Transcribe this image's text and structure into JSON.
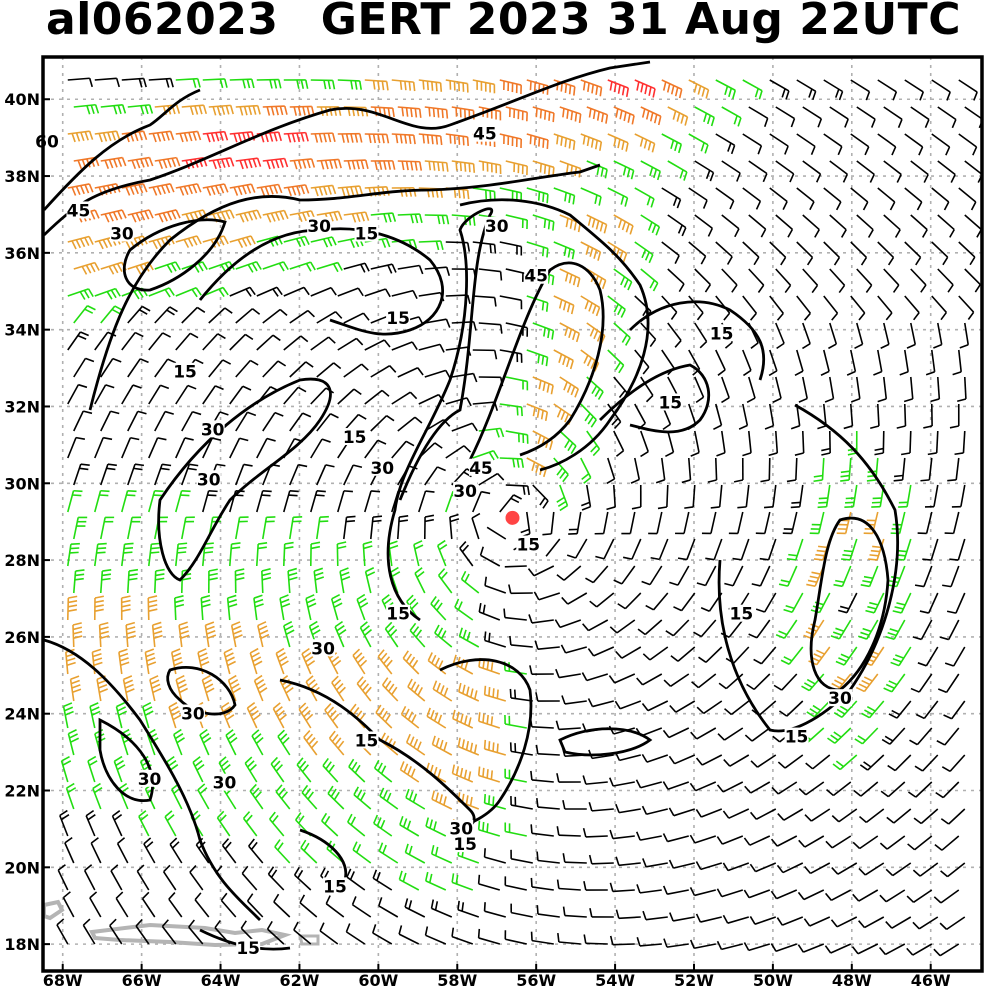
{
  "header": {
    "storm_id": "al062023",
    "title": "GERT 2023 31 Aug 22UTC"
  },
  "axes": {
    "lon_range": [
      -68.5,
      -44.7
    ],
    "lat_range": [
      17.3,
      41.1
    ],
    "lon_ticks": [
      {
        "value": -68,
        "label": "68W"
      },
      {
        "value": -66,
        "label": "66W"
      },
      {
        "value": -64,
        "label": "64W"
      },
      {
        "value": -62,
        "label": "62W"
      },
      {
        "value": -60,
        "label": "60W"
      },
      {
        "value": -58,
        "label": "58W"
      },
      {
        "value": -56,
        "label": "56W"
      },
      {
        "value": -54,
        "label": "54W"
      },
      {
        "value": -52,
        "label": "52W"
      },
      {
        "value": -50,
        "label": "50W"
      },
      {
        "value": -48,
        "label": "48W"
      },
      {
        "value": -46,
        "label": "46W"
      }
    ],
    "lat_ticks": [
      {
        "value": 40,
        "label": "40N"
      },
      {
        "value": 38,
        "label": "38N"
      },
      {
        "value": 36,
        "label": "36N"
      },
      {
        "value": 34,
        "label": "34N"
      },
      {
        "value": 32,
        "label": "32N"
      },
      {
        "value": 30,
        "label": "30N"
      },
      {
        "value": 28,
        "label": "28N"
      },
      {
        "value": 26,
        "label": "26N"
      },
      {
        "value": 24,
        "label": "24N"
      },
      {
        "value": 22,
        "label": "22N"
      },
      {
        "value": 20,
        "label": "20N"
      },
      {
        "value": 18,
        "label": "18N"
      }
    ],
    "grid": true,
    "grid_color": "#b0b0b0"
  },
  "storm_center": {
    "lon": -56.6,
    "lat": 29.1,
    "color": "#ff4444"
  },
  "wind_colors": {
    "calm": "#000000",
    "moderate": "#22dd11",
    "strong": "#e8a030",
    "very_strong": "#f07828",
    "extreme": "#ff3030"
  },
  "contour_labels": [
    {
      "text": "60",
      "lon": -68.4,
      "lat": 38.8
    },
    {
      "text": "45",
      "lon": -67.6,
      "lat": 37.0
    },
    {
      "text": "30",
      "lon": -66.5,
      "lat": 36.4
    },
    {
      "text": "45",
      "lon": -57.3,
      "lat": 39.0
    },
    {
      "text": "30",
      "lon": -61.5,
      "lat": 36.6
    },
    {
      "text": "15",
      "lon": -60.3,
      "lat": 36.4
    },
    {
      "text": "30",
      "lon": -57.0,
      "lat": 36.6
    },
    {
      "text": "45",
      "lon": -56.0,
      "lat": 35.3
    },
    {
      "text": "15",
      "lon": -59.5,
      "lat": 34.2
    },
    {
      "text": "15",
      "lon": -51.3,
      "lat": 33.8
    },
    {
      "text": "15",
      "lon": -64.9,
      "lat": 32.8
    },
    {
      "text": "15",
      "lon": -52.6,
      "lat": 32.0
    },
    {
      "text": "30",
      "lon": -64.2,
      "lat": 31.3
    },
    {
      "text": "15",
      "lon": -60.6,
      "lat": 31.1
    },
    {
      "text": "30",
      "lon": -59.9,
      "lat": 30.3
    },
    {
      "text": "30",
      "lon": -64.3,
      "lat": 30.0
    },
    {
      "text": "45",
      "lon": -57.4,
      "lat": 30.3
    },
    {
      "text": "30",
      "lon": -57.8,
      "lat": 29.7
    },
    {
      "text": "15",
      "lon": -56.2,
      "lat": 28.3
    },
    {
      "text": "15",
      "lon": -59.5,
      "lat": 26.5
    },
    {
      "text": "15",
      "lon": -50.8,
      "lat": 26.5
    },
    {
      "text": "30",
      "lon": -61.4,
      "lat": 25.6
    },
    {
      "text": "30",
      "lon": -64.7,
      "lat": 23.9
    },
    {
      "text": "30",
      "lon": -48.3,
      "lat": 24.3
    },
    {
      "text": "15",
      "lon": -60.3,
      "lat": 23.2
    },
    {
      "text": "15",
      "lon": -49.4,
      "lat": 23.3
    },
    {
      "text": "30",
      "lon": -65.8,
      "lat": 22.2
    },
    {
      "text": "30",
      "lon": -63.9,
      "lat": 22.1
    },
    {
      "text": "30",
      "lon": -57.9,
      "lat": 20.9
    },
    {
      "text": "15",
      "lon": -57.8,
      "lat": 20.5
    },
    {
      "text": "15",
      "lon": -61.1,
      "lat": 19.4
    },
    {
      "text": "15",
      "lon": -63.3,
      "lat": 17.8
    }
  ]
}
